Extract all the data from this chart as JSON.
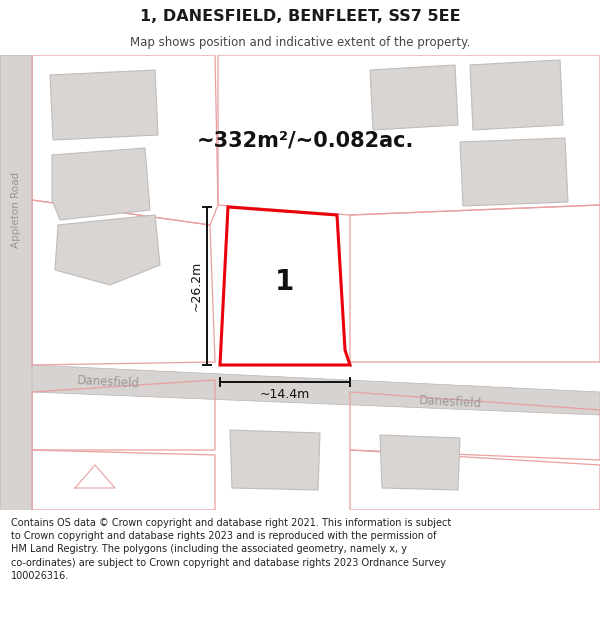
{
  "title": "1, DANESFIELD, BENFLEET, SS7 5EE",
  "subtitle": "Map shows position and indicative extent of the property.",
  "footer": "Contains OS data © Crown copyright and database right 2021. This information is subject\nto Crown copyright and database rights 2023 and is reproduced with the permission of\nHM Land Registry. The polygons (including the associated geometry, namely x, y\nco-ordinates) are subject to Crown copyright and database rights 2023 Ordnance Survey\n100026316.",
  "area_text": "~332m²/~0.082ac.",
  "width_text": "~14.4m",
  "height_text": "~26.2m",
  "property_label": "1",
  "map_bg": "#f2f0ef",
  "road_fill": "#d6d3d1",
  "building_fill": "#d8d5d3",
  "building_edge": "#c0bcba",
  "highlight_fill": "#ffffff",
  "highlight_stroke": "#e8000a",
  "faded_stroke": "#e8a0a0",
  "dim_color": "#111111",
  "street_color": "#9a9896",
  "title_color": "#1a1a1a",
  "subtitle_color": "#444444",
  "footer_color": "#222222"
}
